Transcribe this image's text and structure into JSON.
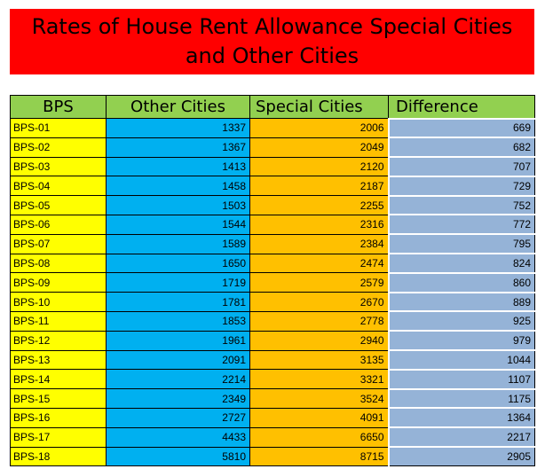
{
  "title": {
    "line1": "Rates of House Rent Allowance Special Cities",
    "line2": "and Other Cities"
  },
  "colors": {
    "banner": "#ff0000",
    "header": "#92d050",
    "bps_column": "#ffff00",
    "other_column": "#00b0f0",
    "special_column": "#ffc000",
    "difference_column": "#95b3d7"
  },
  "table": {
    "headers": [
      "BPS",
      "Other Cities",
      "Special Cities",
      "Difference"
    ],
    "rows": [
      {
        "bps": "BPS-01",
        "other": "1337",
        "special": "2006",
        "difference": "669"
      },
      {
        "bps": "BPS-02",
        "other": "1367",
        "special": "2049",
        "difference": "682"
      },
      {
        "bps": "BPS-03",
        "other": "1413",
        "special": "2120",
        "difference": "707"
      },
      {
        "bps": "BPS-04",
        "other": "1458",
        "special": "2187",
        "difference": "729"
      },
      {
        "bps": "BPS-05",
        "other": "1503",
        "special": "2255",
        "difference": "752"
      },
      {
        "bps": "BPS-06",
        "other": "1544",
        "special": "2316",
        "difference": "772"
      },
      {
        "bps": "BPS-07",
        "other": "1589",
        "special": "2384",
        "difference": "795"
      },
      {
        "bps": "BPS-08",
        "other": "1650",
        "special": "2474",
        "difference": "824"
      },
      {
        "bps": "BPS-09",
        "other": "1719",
        "special": "2579",
        "difference": "860"
      },
      {
        "bps": "BPS-10",
        "other": "1781",
        "special": "2670",
        "difference": "889"
      },
      {
        "bps": "BPS-11",
        "other": "1853",
        "special": "2778",
        "difference": "925"
      },
      {
        "bps": "BPS-12",
        "other": "1961",
        "special": "2940",
        "difference": "979"
      },
      {
        "bps": "BPS-13",
        "other": "2091",
        "special": "3135",
        "difference": "1044"
      },
      {
        "bps": "BPS-14",
        "other": "2214",
        "special": "3321",
        "difference": "1107"
      },
      {
        "bps": "BPS-15",
        "other": "2349",
        "special": "3524",
        "difference": "1175"
      },
      {
        "bps": "BPS-16",
        "other": "2727",
        "special": "4091",
        "difference": "1364"
      },
      {
        "bps": "BPS-17",
        "other": "4433",
        "special": "6650",
        "difference": "2217"
      },
      {
        "bps": "BPS-18",
        "other": "5810",
        "special": "8715",
        "difference": "2905"
      }
    ]
  }
}
